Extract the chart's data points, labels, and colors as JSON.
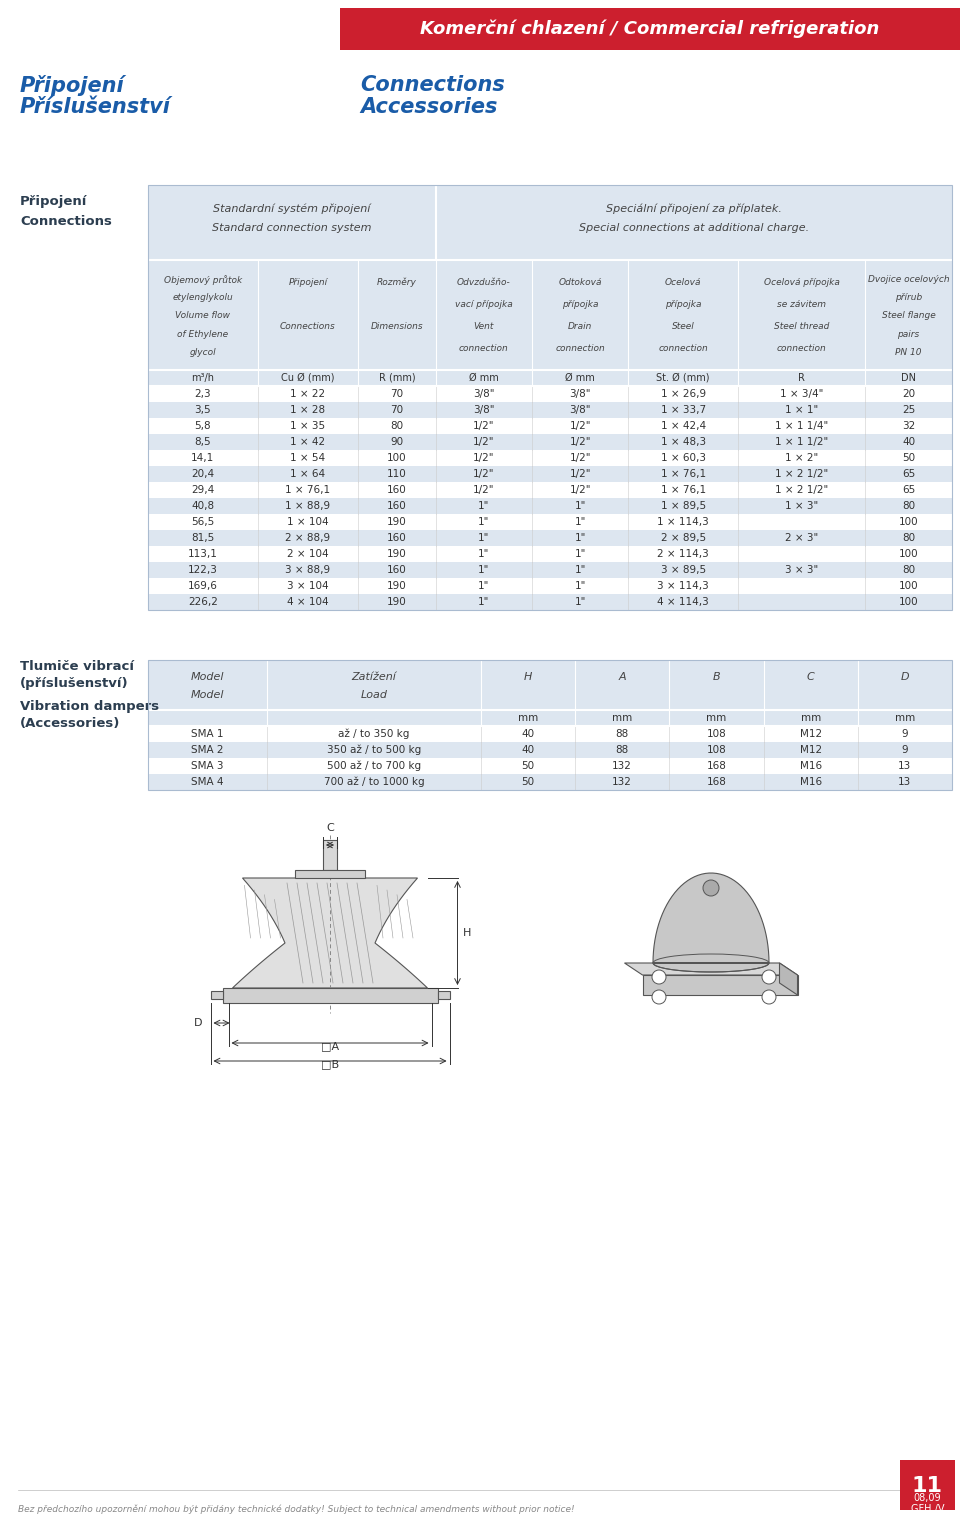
{
  "header_text": "Komerční chlazení / Commercial refrigeration",
  "header_bg": "#cc1f2e",
  "header_text_color": "#ffffff",
  "left_title_cz": [
    "Připojení",
    "Příslušenství"
  ],
  "left_title_en": [
    "Connections",
    "Accessories"
  ],
  "title_color": "#1a5ca8",
  "section1_cz": "Připojení",
  "section1_en": "Connections",
  "table1_bg_even": "#dde6f0",
  "table1_bg_odd": "#ffffff",
  "table1_top_left_cz": "Standardní systém připojení",
  "table1_top_left_en": "Standard connection system",
  "table1_top_right_cz": "Speciální připojení za příplatek.",
  "table1_top_right_en": "Special connections at additional charge.",
  "col_headers": [
    [
      "Objemový průtok",
      "etylenglykolu",
      "Volume flow",
      "of Ethylene",
      "glycol"
    ],
    [
      "Připojení",
      "",
      "Connections",
      ""
    ],
    [
      "Rozměry",
      "",
      "Dimensions",
      ""
    ],
    [
      "Odvzdušňo-",
      "vací přípojka",
      "Vent",
      "connection"
    ],
    [
      "Odtoková",
      "přípojka",
      "Drain",
      "connection"
    ],
    [
      "Ocelová",
      "přípojka",
      "Steel",
      "connection"
    ],
    [
      "Ocelová přípojka",
      "se závitem",
      "Steel thread",
      "connection"
    ],
    [
      "Dvojice ocelových",
      "přírub",
      "Steel flange",
      "pairs",
      "PN 10"
    ]
  ],
  "col_units": [
    "m³/h",
    "Cu Ø (mm)",
    "R (mm)",
    "Ø mm",
    "Ø mm",
    "St. Ø (mm)",
    "R",
    "DN"
  ],
  "table1_data": [
    [
      "2,3",
      "1 × 22",
      "70",
      "3/8\"",
      "3/8\"",
      "1 × 26,9",
      "1 × 3/4\"",
      "20"
    ],
    [
      "3,5",
      "1 × 28",
      "70",
      "3/8\"",
      "3/8\"",
      "1 × 33,7",
      "1 × 1\"",
      "25"
    ],
    [
      "5,8",
      "1 × 35",
      "80",
      "1/2\"",
      "1/2\"",
      "1 × 42,4",
      "1 × 1 1/4\"",
      "32"
    ],
    [
      "8,5",
      "1 × 42",
      "90",
      "1/2\"",
      "1/2\"",
      "1 × 48,3",
      "1 × 1 1/2\"",
      "40"
    ],
    [
      "14,1",
      "1 × 54",
      "100",
      "1/2\"",
      "1/2\"",
      "1 × 60,3",
      "1 × 2\"",
      "50"
    ],
    [
      "20,4",
      "1 × 64",
      "110",
      "1/2\"",
      "1/2\"",
      "1 × 76,1",
      "1 × 2 1/2\"",
      "65"
    ],
    [
      "29,4",
      "1 × 76,1",
      "160",
      "1/2\"",
      "1/2\"",
      "1 × 76,1",
      "1 × 2 1/2\"",
      "65"
    ],
    [
      "40,8",
      "1 × 88,9",
      "160",
      "1\"",
      "1\"",
      "1 × 89,5",
      "1 × 3\"",
      "80"
    ],
    [
      "56,5",
      "1 × 104",
      "190",
      "1\"",
      "1\"",
      "1 × 114,3",
      "",
      "100"
    ],
    [
      "81,5",
      "2 × 88,9",
      "160",
      "1\"",
      "1\"",
      "2 × 89,5",
      "2 × 3\"",
      "80"
    ],
    [
      "113,1",
      "2 × 104",
      "190",
      "1\"",
      "1\"",
      "2 × 114,3",
      "",
      "100"
    ],
    [
      "122,3",
      "3 × 88,9",
      "160",
      "1\"",
      "1\"",
      "3 × 89,5",
      "3 × 3\"",
      "80"
    ],
    [
      "169,6",
      "3 × 104",
      "190",
      "1\"",
      "1\"",
      "3 × 114,3",
      "",
      "100"
    ],
    [
      "226,2",
      "4 × 104",
      "190",
      "1\"",
      "1\"",
      "4 × 114,3",
      "",
      "100"
    ]
  ],
  "section2_cz": [
    "Tlumiče vibrací",
    "(příslušenství)"
  ],
  "section2_en": [
    "Vibration dampers",
    "(Accessories)"
  ],
  "table2_headers": [
    "Model",
    "Zatížení",
    "H",
    "A",
    "B",
    "C",
    "D"
  ],
  "table2_headers_en": [
    "Model",
    "Load",
    "",
    "",
    "",
    "",
    ""
  ],
  "table2_units": [
    "",
    "",
    "mm",
    "mm",
    "mm",
    "mm",
    "mm"
  ],
  "table2_data": [
    [
      "SMA 1",
      "až / to 350 kg",
      "40",
      "88",
      "108",
      "M12",
      "9"
    ],
    [
      "SMA 2",
      "350 až / to 500 kg",
      "40",
      "88",
      "108",
      "M12",
      "9"
    ],
    [
      "SMA 3",
      "500 až / to 700 kg",
      "50",
      "132",
      "168",
      "M16",
      "13"
    ],
    [
      "SMA 4",
      "700 až / to 1000 kg",
      "50",
      "132",
      "168",
      "M16",
      "13"
    ]
  ],
  "footer_text": "Bez předchozího upozornění mohou být přidány technické dodatky! Subject to technical amendments without prior notice!",
  "page_number": "11",
  "page_date": "08,09",
  "page_code": "GFH /V",
  "bg_color": "#ffffff"
}
